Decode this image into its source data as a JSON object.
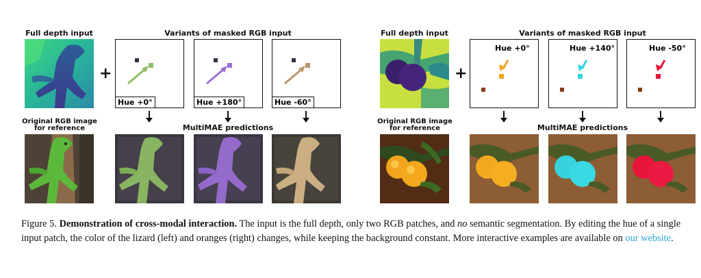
{
  "left_panel": {
    "full_depth_title": "Full depth input",
    "variants_title": "Variants of masked RGB input",
    "original_label_line1": "Original RGB image",
    "original_label_line2": "for reference",
    "predictions_title": "MultiMAE predictions",
    "plus": "+",
    "variants": [
      {
        "hue_label": "Hue +0°",
        "color": "#8fbe63"
      },
      {
        "hue_label": "Hue +180°",
        "color": "#9b6fd6"
      },
      {
        "hue_label": "Hue -60°",
        "color": "#b9976b"
      }
    ]
  },
  "right_panel": {
    "full_depth_title": "Full depth input",
    "variants_title": "Variants of masked RGB input",
    "original_label_line1": "Original RGB image",
    "original_label_line2": "for reference",
    "predictions_title": "MultiMAE predictions",
    "plus": "+",
    "variants": [
      {
        "hue_label": "Hue +0°",
        "color": "#f2a41c"
      },
      {
        "hue_label": "Hue +140°",
        "color": "#35d4e0"
      },
      {
        "hue_label": "Hue -50°",
        "color": "#e8143c"
      }
    ]
  },
  "caption": {
    "figure_label": "Figure 5.",
    "title": "Demonstration of cross-modal interaction.",
    "text_1": " The input is the full depth, only two RGB patches, and ",
    "emphasis": "no",
    "text_2": " semantic segmentation. By editing the hue of a single input patch, the color of the lizard (left) and oranges (right) changes, while keeping the background constant. More interactive examples are available on ",
    "link_text": "our website",
    "text_3": "."
  }
}
